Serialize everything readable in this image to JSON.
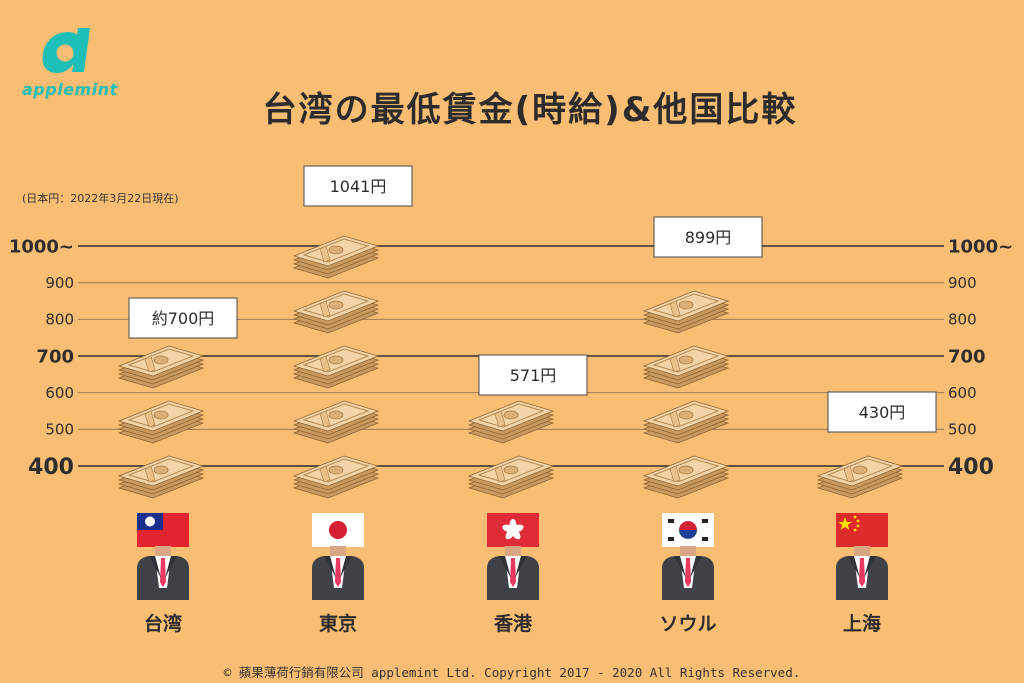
{
  "brand": {
    "logo_letter": "a",
    "name": "applemint",
    "color": "#1dbfb8"
  },
  "title": "台湾の最低賃金(時給)&他国比較",
  "note": "(日本円：2022年3月22日現在)",
  "footer": "© 蘋果薄荷行銷有限公司 applemint Ltd. Copyright 2017 - 2020 All Rights Reserved.",
  "colors": {
    "background": "#f9bd73",
    "line": "#3a3a3a",
    "money": "#e9c597",
    "suit": "#3e4146",
    "tie": "#e8385f"
  },
  "icons": {
    "money": "banknote-stack-icon",
    "person": "businessman-icon"
  },
  "chart_data": {
    "type": "bar",
    "title": "台湾の最低賃金(時給)&他国比較",
    "categories": [
      "台湾",
      "東京",
      "香港",
      "ソウル",
      "上海"
    ],
    "values": [
      700,
      1041,
      571,
      899,
      430
    ],
    "value_labels": [
      "約700円",
      "1041円",
      "571円",
      "899円",
      "430円"
    ],
    "flags": [
      "taiwan-flag-icon",
      "japan-flag-icon",
      "hongkong-flag-icon",
      "korea-flag-icon",
      "china-flag-icon"
    ],
    "yticks": [
      {
        "value": 1000,
        "label": "1000~",
        "bold": true
      },
      {
        "value": 900,
        "label": "900",
        "bold": false
      },
      {
        "value": 800,
        "label": "800",
        "bold": false
      },
      {
        "value": 700,
        "label": "700",
        "bold": true
      },
      {
        "value": 600,
        "label": "600",
        "bold": false
      },
      {
        "value": 500,
        "label": "500",
        "bold": false
      },
      {
        "value": 400,
        "label": "400",
        "bold": true
      }
    ],
    "ylim": [
      400,
      1000
    ],
    "unit": "円"
  }
}
